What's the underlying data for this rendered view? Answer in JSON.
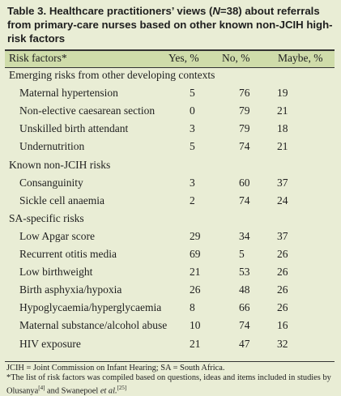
{
  "table": {
    "label": "Table 3.",
    "title_pre": "Healthcare practitioners’ views (",
    "title_n": "N",
    "title_post": "=38) about referrals from primary-care nurses based on other known non-JCIH high-risk factors",
    "headers": [
      "Risk factors*",
      "Yes, %",
      "No, %",
      "Maybe, %"
    ],
    "rows": [
      {
        "type": "section",
        "label": "Emerging risks from other developing contexts"
      },
      {
        "type": "item",
        "label": "Maternal hypertension",
        "yes": "5",
        "no": "76",
        "maybe": "19"
      },
      {
        "type": "item",
        "label": "Non-elective caesarean section",
        "yes": "0",
        "no": "79",
        "maybe": "21"
      },
      {
        "type": "item",
        "label": "Unskilled birth attendant",
        "yes": "3",
        "no": "79",
        "maybe": "18"
      },
      {
        "type": "item",
        "label": "Undernutrition",
        "yes": "5",
        "no": "74",
        "maybe": "21"
      },
      {
        "type": "section",
        "label": "Known non-JCIH risks"
      },
      {
        "type": "item",
        "label": "Consanguinity",
        "yes": "3",
        "no": "60",
        "maybe": "37"
      },
      {
        "type": "item",
        "label": "Sickle cell anaemia",
        "yes": "2",
        "no": "74",
        "maybe": "24"
      },
      {
        "type": "section",
        "label": "SA-specific risks"
      },
      {
        "type": "item",
        "label": "Low Apgar score",
        "yes": "29",
        "no": "34",
        "maybe": "37"
      },
      {
        "type": "item",
        "label": "Recurrent otitis media",
        "yes": "69",
        "no": "5",
        "maybe": "26"
      },
      {
        "type": "item",
        "label": "Low birthweight",
        "yes": "21",
        "no": "53",
        "maybe": "26"
      },
      {
        "type": "item",
        "label": "Birth asphyxia/hypoxia",
        "yes": "26",
        "no": "48",
        "maybe": "26"
      },
      {
        "type": "item",
        "label": "Hypoglycaemia/hyperglycaemia",
        "yes": "8",
        "no": "66",
        "maybe": "26"
      },
      {
        "type": "item",
        "label": "Maternal substance/alcohol abuse",
        "yes": "10",
        "no": "74",
        "maybe": "16"
      },
      {
        "type": "item",
        "label": "HIV exposure",
        "yes": "21",
        "no": "47",
        "maybe": "32"
      }
    ]
  },
  "footnotes": {
    "abbreviations": "JCIH = Joint Commission on Infant Hearing; SA = South Africa.",
    "note_pre": "*The list of risk factors was compiled based on questions, ideas and items included in studies by Olusanya",
    "ref1": "[4]",
    "note_mid": " and Swanepoel ",
    "note_etal": "et al.",
    "ref2": "[25]"
  },
  "colors": {
    "page_bg": "#e9edd5",
    "header_bg": "#cfdcaa",
    "rule": "#333333"
  }
}
